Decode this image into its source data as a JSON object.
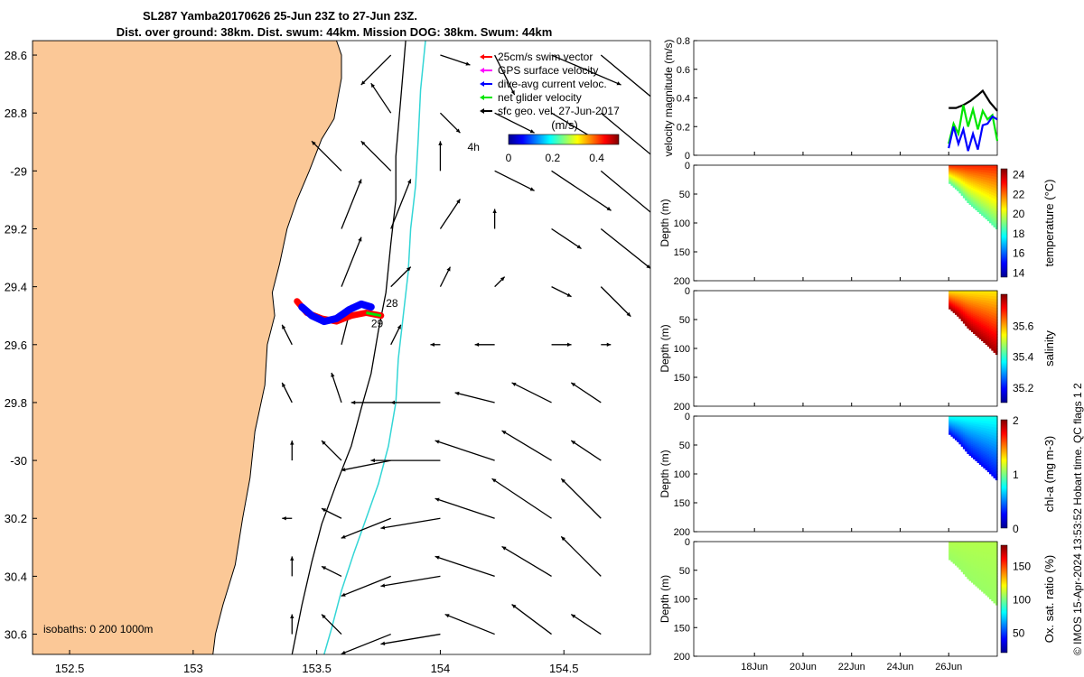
{
  "header": {
    "title": "SL287 Yamba20170626 25-Jun 23Z to 27-Jun 23Z.",
    "subtitle": "Dist. over ground: 38km. Dist. swum: 44km. Mission DOG: 38km. Swum: 44km"
  },
  "footer": {
    "stamp": "© IMOS 15-Apr-2024 13:53:52 Hobart time. QC flags 1  2"
  },
  "colors": {
    "land": "#fbc897",
    "isobath200": "#000000",
    "isobath1000": "#33d6d6",
    "swim": "#ff0000",
    "gps": "#ff00ff",
    "dive": "#0000ff",
    "net": "#00e600",
    "geo": "#000000"
  },
  "chart_data": [
    {
      "type": "map",
      "xlim": [
        152.35,
        154.85
      ],
      "ylim": [
        -30.67,
        -28.55
      ],
      "xticks": [
        {
          "value": 152.5,
          "label": "152.5"
        },
        {
          "value": 153,
          "label": "153"
        },
        {
          "value": 153.5,
          "label": "153.5"
        },
        {
          "value": 154,
          "label": "154"
        },
        {
          "value": 154.5,
          "label": "154.5"
        }
      ],
      "yticks": [
        {
          "value": -28.6,
          "label": "28.6"
        },
        {
          "value": -28.8,
          "label": "28.8"
        },
        {
          "value": -29,
          "label": "-29"
        },
        {
          "value": -29.2,
          "label": "29.2"
        },
        {
          "value": -29.4,
          "label": "29.4"
        },
        {
          "value": -29.6,
          "label": "29.6"
        },
        {
          "value": -29.8,
          "label": "29.8"
        },
        {
          "value": -30,
          "label": "-30"
        },
        {
          "value": -30.2,
          "label": "30.2"
        },
        {
          "value": -30.4,
          "label": "30.4"
        },
        {
          "value": -30.6,
          "label": "30.6"
        }
      ],
      "coastline": [
        [
          152.35,
          -28.55
        ],
        [
          153.58,
          -28.55
        ],
        [
          153.6,
          -28.6
        ],
        [
          153.6,
          -28.68
        ],
        [
          153.57,
          -28.82
        ],
        [
          153.52,
          -28.89
        ],
        [
          153.47,
          -29.0
        ],
        [
          153.42,
          -29.1
        ],
        [
          153.38,
          -29.2
        ],
        [
          153.35,
          -29.32
        ],
        [
          153.32,
          -29.42
        ],
        [
          153.33,
          -29.5
        ],
        [
          153.3,
          -29.6
        ],
        [
          153.29,
          -29.74
        ],
        [
          153.25,
          -29.9
        ],
        [
          153.23,
          -30.06
        ],
        [
          153.2,
          -30.2
        ],
        [
          153.17,
          -30.36
        ],
        [
          153.12,
          -30.5
        ],
        [
          153.09,
          -30.6
        ],
        [
          153.08,
          -30.67
        ],
        [
          152.35,
          -30.67
        ]
      ],
      "isobath_200": [
        [
          153.86,
          -28.55
        ],
        [
          153.84,
          -28.75
        ],
        [
          153.82,
          -28.95
        ],
        [
          153.82,
          -29.1
        ],
        [
          153.8,
          -29.25
        ],
        [
          153.78,
          -29.42
        ],
        [
          153.75,
          -29.55
        ],
        [
          153.72,
          -29.7
        ],
        [
          153.68,
          -29.82
        ],
        [
          153.64,
          -29.95
        ],
        [
          153.58,
          -30.08
        ],
        [
          153.52,
          -30.22
        ],
        [
          153.48,
          -30.35
        ],
        [
          153.44,
          -30.5
        ],
        [
          153.4,
          -30.67
        ]
      ],
      "isobath_1000": [
        [
          153.94,
          -28.55
        ],
        [
          153.92,
          -28.72
        ],
        [
          153.91,
          -28.9
        ],
        [
          153.9,
          -29.05
        ],
        [
          153.88,
          -29.2
        ],
        [
          153.87,
          -29.35
        ],
        [
          153.85,
          -29.5
        ],
        [
          153.83,
          -29.65
        ],
        [
          153.82,
          -29.8
        ],
        [
          153.79,
          -29.95
        ],
        [
          153.75,
          -30.08
        ],
        [
          153.7,
          -30.2
        ],
        [
          153.65,
          -30.32
        ],
        [
          153.6,
          -30.45
        ],
        [
          153.56,
          -30.58
        ],
        [
          153.53,
          -30.67
        ]
      ],
      "track_dive": [
        [
          153.44,
          -29.47
        ],
        [
          153.48,
          -29.5
        ],
        [
          153.53,
          -29.52
        ],
        [
          153.58,
          -29.51
        ],
        [
          153.63,
          -29.48
        ],
        [
          153.68,
          -29.46
        ],
        [
          153.72,
          -29.47
        ]
      ],
      "track_swim": [
        [
          153.42,
          -29.45
        ],
        [
          153.46,
          -29.49
        ],
        [
          153.52,
          -29.51
        ],
        [
          153.58,
          -29.52
        ],
        [
          153.64,
          -29.5
        ],
        [
          153.7,
          -29.49
        ],
        [
          153.76,
          -29.5
        ]
      ],
      "track_labels": [
        {
          "text": "28",
          "lon": 153.78,
          "lat": -29.47
        },
        {
          "text": "29",
          "lon": 153.72,
          "lat": -29.54
        },
        {
          "text": "4h",
          "lon": 154.11,
          "lat": -28.93
        }
      ],
      "current_vectors": [
        [
          153.8,
          -28.6,
          -0.03,
          -0.03
        ],
        [
          154.0,
          -28.6,
          0.03,
          -0.01
        ],
        [
          154.22,
          -28.6,
          0.02,
          -0.04
        ],
        [
          154.45,
          -28.6,
          0.07,
          -0.03
        ],
        [
          154.65,
          -28.6,
          0.06,
          -0.05
        ],
        [
          154.85,
          -28.6,
          0.04,
          -0.02
        ],
        [
          153.8,
          -28.8,
          -0.02,
          0.03
        ],
        [
          154.0,
          -28.8,
          0.02,
          -0.02
        ],
        [
          154.22,
          -28.8,
          0.04,
          -0.02
        ],
        [
          154.45,
          -28.8,
          0.05,
          -0.03
        ],
        [
          154.65,
          -28.8,
          0.06,
          -0.05
        ],
        [
          153.6,
          -29.0,
          -0.03,
          0.03
        ],
        [
          153.8,
          -29.0,
          -0.03,
          0.03
        ],
        [
          154.0,
          -29.0,
          0.0,
          0.03
        ],
        [
          154.22,
          -29.0,
          0.04,
          -0.02
        ],
        [
          154.45,
          -29.0,
          0.06,
          -0.04
        ],
        [
          154.65,
          -29.0,
          0.06,
          -0.05
        ],
        [
          153.6,
          -29.2,
          0.02,
          0.05
        ],
        [
          153.8,
          -29.2,
          0.02,
          0.05
        ],
        [
          154.0,
          -29.2,
          0.02,
          0.03
        ],
        [
          154.22,
          -29.2,
          0.0,
          0.02
        ],
        [
          154.45,
          -29.2,
          0.03,
          -0.02
        ],
        [
          154.65,
          -29.2,
          0.05,
          -0.04
        ],
        [
          153.6,
          -29.4,
          0.02,
          0.05
        ],
        [
          153.8,
          -29.4,
          0.02,
          0.02
        ],
        [
          154.0,
          -29.4,
          0.01,
          0.02
        ],
        [
          154.22,
          -29.4,
          0.01,
          0.01
        ],
        [
          154.45,
          -29.4,
          0.02,
          -0.01
        ],
        [
          154.65,
          -29.4,
          0.03,
          -0.03
        ],
        [
          153.4,
          -29.6,
          -0.01,
          0.02
        ],
        [
          153.6,
          -29.6,
          0.01,
          0.04
        ],
        [
          153.8,
          -29.6,
          0.01,
          0.02
        ],
        [
          154.0,
          -29.6,
          -0.01,
          0.0
        ],
        [
          154.22,
          -29.6,
          -0.02,
          0.0
        ],
        [
          154.45,
          -29.6,
          0.02,
          0.0
        ],
        [
          154.65,
          -29.6,
          0.01,
          0.0
        ],
        [
          153.4,
          -29.8,
          -0.01,
          0.02
        ],
        [
          153.6,
          -29.8,
          -0.01,
          0.03
        ],
        [
          153.8,
          -29.8,
          -0.04,
          0.0
        ],
        [
          154.0,
          -29.8,
          -0.05,
          0.0
        ],
        [
          154.22,
          -29.8,
          -0.04,
          0.01
        ],
        [
          154.45,
          -29.8,
          -0.04,
          0.02
        ],
        [
          154.65,
          -29.8,
          -0.03,
          0.02
        ],
        [
          153.4,
          -30.0,
          0.0,
          0.02
        ],
        [
          153.6,
          -30.0,
          -0.02,
          0.02
        ],
        [
          153.8,
          -30.0,
          -0.05,
          -0.01
        ],
        [
          154.0,
          -30.0,
          -0.07,
          0.0
        ],
        [
          154.22,
          -30.0,
          -0.06,
          0.02
        ],
        [
          154.45,
          -30.0,
          -0.05,
          0.03
        ],
        [
          154.65,
          -30.0,
          -0.03,
          0.02
        ],
        [
          153.4,
          -30.2,
          -0.01,
          0.0
        ],
        [
          153.6,
          -30.2,
          -0.02,
          0.01
        ],
        [
          153.8,
          -30.2,
          -0.05,
          -0.02
        ],
        [
          154.0,
          -30.2,
          -0.06,
          -0.01
        ],
        [
          154.22,
          -30.2,
          -0.06,
          0.02
        ],
        [
          154.45,
          -30.2,
          -0.06,
          0.04
        ],
        [
          154.65,
          -30.2,
          -0.04,
          0.04
        ],
        [
          153.4,
          -30.4,
          0.0,
          0.02
        ],
        [
          153.6,
          -30.4,
          -0.02,
          0.01
        ],
        [
          153.8,
          -30.4,
          -0.05,
          -0.02
        ],
        [
          154.0,
          -30.4,
          -0.06,
          -0.01
        ],
        [
          154.22,
          -30.4,
          -0.06,
          0.02
        ],
        [
          154.45,
          -30.4,
          -0.05,
          0.03
        ],
        [
          154.65,
          -30.4,
          -0.04,
          0.04
        ],
        [
          153.4,
          -30.6,
          0.0,
          0.02
        ],
        [
          153.6,
          -30.6,
          -0.02,
          0.02
        ],
        [
          153.8,
          -30.6,
          -0.05,
          -0.02
        ],
        [
          154.0,
          -30.6,
          -0.06,
          -0.01
        ],
        [
          154.22,
          -30.6,
          -0.05,
          0.02
        ],
        [
          154.45,
          -30.6,
          -0.04,
          0.03
        ],
        [
          154.65,
          -30.6,
          -0.03,
          0.02
        ]
      ],
      "legend": {
        "entries": [
          {
            "label": "25cm/s swim vector",
            "color": "#ff0000"
          },
          {
            "label": "GPS surface velocity",
            "color": "#ff00ff"
          },
          {
            "label": "dive-avg current veloc.",
            "color": "#0000ff"
          },
          {
            "label": "net glider velocity",
            "color": "#00e600"
          },
          {
            "label": "sfc geo. vel. 27-Jun-2017",
            "color": "#000000"
          }
        ]
      },
      "colorbar": {
        "label": "(m/s)",
        "range": [
          0,
          0.5
        ],
        "ticks": [
          {
            "value": 0,
            "label": "0"
          },
          {
            "value": 0.2,
            "label": "0.2"
          },
          {
            "value": 0.4,
            "label": "0.4"
          }
        ]
      },
      "isobath_note": "isobaths: 0   200  1000m"
    },
    {
      "type": "line",
      "ylabel": "velocity magnitude (m/s)",
      "ylim": [
        0,
        0.8
      ],
      "yticks": [
        {
          "value": 0,
          "label": "0"
        },
        {
          "value": 0.2,
          "label": "0.2"
        },
        {
          "value": 0.4,
          "label": "0.4"
        },
        {
          "value": 0.6,
          "label": "0.6"
        },
        {
          "value": 0.8,
          "label": "0.8"
        }
      ],
      "series": [
        {
          "color": "#000000",
          "x": [
            26.0,
            26.3,
            26.6,
            26.9,
            27.2,
            27.4,
            27.7,
            28.0
          ],
          "values": [
            0.33,
            0.33,
            0.35,
            0.38,
            0.42,
            0.45,
            0.37,
            0.31
          ]
        },
        {
          "color": "#00e600",
          "x": [
            26.0,
            26.2,
            26.4,
            26.6,
            26.8,
            27.0,
            27.2,
            27.4,
            27.6,
            27.8,
            28.0
          ],
          "values": [
            0.08,
            0.22,
            0.15,
            0.35,
            0.2,
            0.32,
            0.18,
            0.31,
            0.25,
            0.28,
            0.1
          ]
        },
        {
          "color": "#0000ff",
          "x": [
            26.0,
            26.2,
            26.4,
            26.6,
            26.8,
            27.0,
            27.2,
            27.4,
            27.6,
            27.8,
            28.0
          ],
          "values": [
            0.05,
            0.2,
            0.08,
            0.18,
            0.03,
            0.15,
            0.04,
            0.21,
            0.22,
            0.27,
            0.25
          ]
        }
      ]
    },
    {
      "type": "heatmap",
      "clabel": "temperature (°C)",
      "crange": [
        13.5,
        24.5
      ],
      "colorscale": "jet",
      "cticks": [
        {
          "value": 14,
          "label": "14"
        },
        {
          "value": 16,
          "label": "16"
        },
        {
          "value": 18,
          "label": "18"
        },
        {
          "value": 20,
          "label": "20"
        },
        {
          "value": 22,
          "label": "22"
        },
        {
          "value": 24,
          "label": "24"
        }
      ],
      "surface_value": 22.8,
      "deep_value": 18.5
    },
    {
      "type": "heatmap",
      "clabel": "salinity",
      "crange": [
        35.1,
        35.8
      ],
      "colorscale": "jet",
      "cticks": [
        {
          "value": 35.2,
          "label": "35.2"
        },
        {
          "value": 35.4,
          "label": "35.4"
        },
        {
          "value": 35.6,
          "label": "35.6"
        }
      ],
      "surface_value": 35.55,
      "deep_value": 35.78
    },
    {
      "type": "heatmap",
      "clabel": "chl-a (mg m-3)",
      "crange": [
        0,
        2
      ],
      "colorscale": "jet",
      "cticks": [
        {
          "value": 0,
          "label": "0"
        },
        {
          "value": 1,
          "label": "1"
        },
        {
          "value": 2,
          "label": "2"
        }
      ],
      "surface_value": 0.8,
      "deep_value": 0.25
    },
    {
      "type": "heatmap",
      "clabel": "Ox. sat. ratio (%)",
      "crange": [
        20,
        180
      ],
      "colorscale": "jet",
      "cticks": [
        {
          "value": 50,
          "label": "50"
        },
        {
          "value": 100,
          "label": "100"
        },
        {
          "value": 150,
          "label": "150"
        }
      ],
      "surface_value": 108,
      "deep_value": 104
    }
  ],
  "profile_axes": {
    "ylabel": "Depth (m)",
    "ylim": [
      0,
      200
    ],
    "yticks": [
      {
        "value": 0,
        "label": "0"
      },
      {
        "value": 50,
        "label": "50"
      },
      {
        "value": 100,
        "label": "100"
      },
      {
        "value": 150,
        "label": "150"
      },
      {
        "value": 200,
        "label": "200"
      }
    ],
    "xlim": [
      15.5,
      28.0
    ],
    "xticks": [
      {
        "value": 18,
        "label": "18Jun"
      },
      {
        "value": 20,
        "label": "20Jun"
      },
      {
        "value": 22,
        "label": "22Jun"
      },
      {
        "value": 24,
        "label": "24Jun"
      },
      {
        "value": 26,
        "label": "26Jun"
      }
    ],
    "data_start": 26.0,
    "bottom_depth": [
      [
        26.0,
        30
      ],
      [
        26.4,
        45
      ],
      [
        26.8,
        65
      ],
      [
        27.2,
        80
      ],
      [
        27.6,
        95
      ],
      [
        28.0,
        112
      ]
    ]
  }
}
